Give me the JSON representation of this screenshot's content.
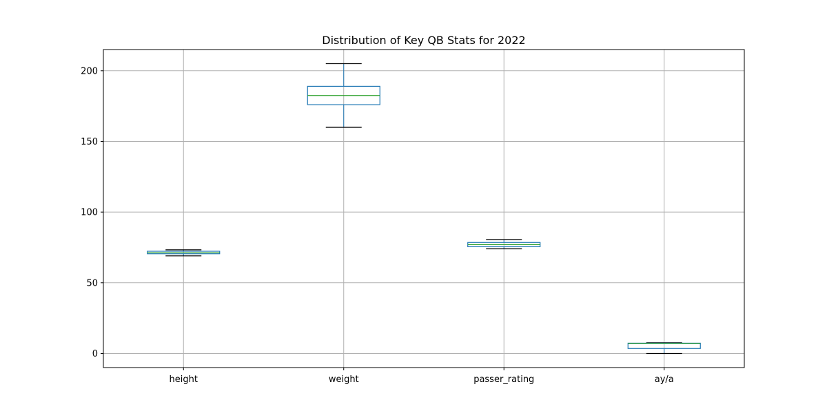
{
  "chart_data": {
    "type": "box",
    "title": "Distribution of Key QB Stats for 2022",
    "xlabel": "",
    "ylabel": "",
    "ylim": [
      -10,
      215
    ],
    "yticks": [
      0,
      50,
      100,
      150,
      200
    ],
    "grid": true,
    "colors": {
      "box": "#1f77b4",
      "median": "#2ca02c",
      "whisker_cap": "#000000",
      "grid": "#b0b0b0"
    },
    "categories": [
      "height",
      "weight",
      "passer_rating",
      "ay/a"
    ],
    "boxes": [
      {
        "name": "height",
        "whisker_low": 69,
        "q1": 70.5,
        "median": 71.3,
        "q3": 72.3,
        "whisker_high": 73.3
      },
      {
        "name": "weight",
        "whisker_low": 160,
        "q1": 176,
        "median": 182.5,
        "q3": 189,
        "whisker_high": 205
      },
      {
        "name": "passer_rating",
        "whisker_low": 74,
        "q1": 75.5,
        "median": 77,
        "q3": 78.5,
        "whisker_high": 80.5
      },
      {
        "name": "ay/a",
        "whisker_low": 0,
        "q1": 3.5,
        "median": 7,
        "q3": 7.3,
        "whisker_high": 7.6
      }
    ]
  }
}
